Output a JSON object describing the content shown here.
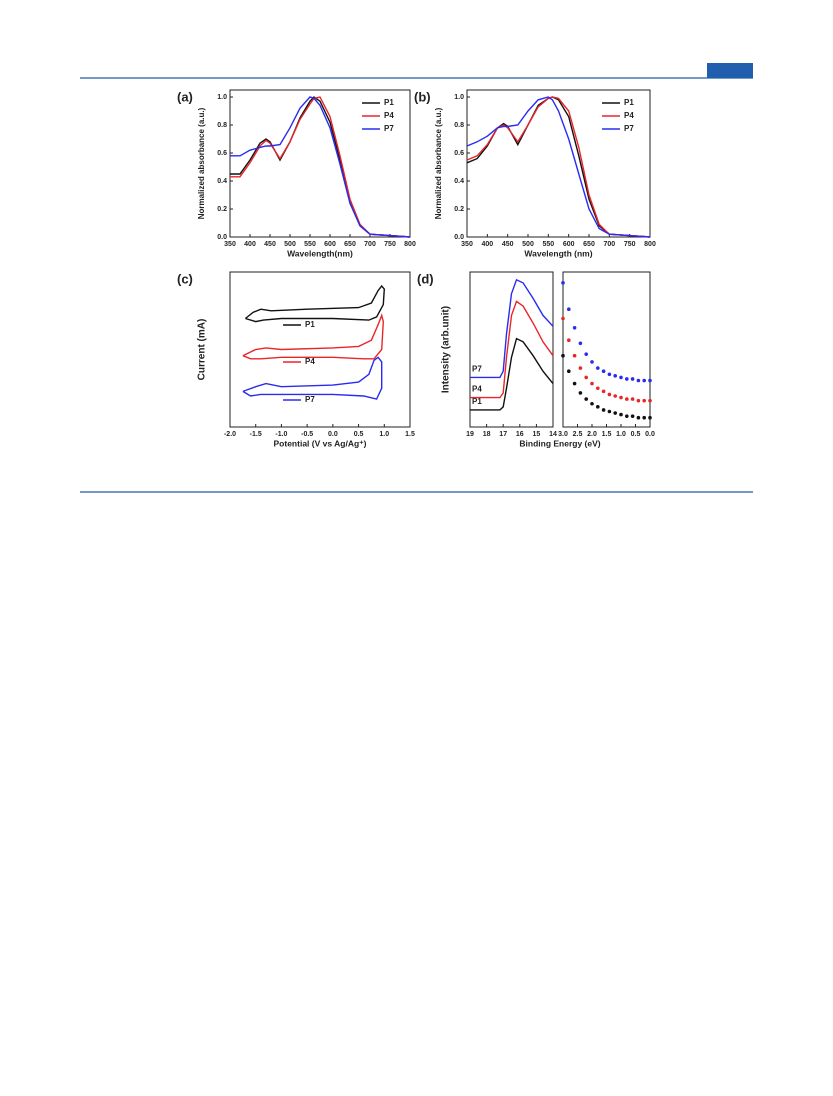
{
  "chart_data": [
    {
      "type": "line",
      "panel": "(a)",
      "xlabel": "Wavelength(nm)",
      "ylabel": "Normalized absorbance (a.u.)",
      "legend": "upper right",
      "xlim": [
        350,
        800
      ],
      "xticks": [
        350,
        400,
        450,
        500,
        550,
        600,
        650,
        700,
        750,
        800
      ],
      "ylim": [
        0,
        1.05
      ],
      "yticks": [
        {
          "value": 0,
          "label": "0.0"
        },
        {
          "value": 0.2,
          "label": "0.2"
        },
        {
          "value": 0.4,
          "label": "0.4"
        },
        {
          "value": 0.6,
          "label": "0.6"
        },
        {
          "value": 0.8,
          "label": "0.8"
        },
        {
          "value": 1,
          "label": "1.0"
        }
      ],
      "x": [
        350,
        375,
        400,
        425,
        440,
        450,
        475,
        500,
        525,
        550,
        560,
        575,
        600,
        625,
        650,
        675,
        700,
        750,
        800
      ],
      "series": [
        {
          "name": "P1",
          "color": "#111111",
          "values": [
            0.45,
            0.45,
            0.55,
            0.67,
            0.7,
            0.68,
            0.55,
            0.68,
            0.85,
            0.97,
            1.0,
            0.97,
            0.82,
            0.55,
            0.25,
            0.08,
            0.02,
            0.01,
            0
          ]
        },
        {
          "name": "P4",
          "color": "#e8262a",
          "values": [
            0.43,
            0.43,
            0.53,
            0.65,
            0.69,
            0.67,
            0.56,
            0.68,
            0.84,
            0.95,
            0.99,
            1.0,
            0.86,
            0.58,
            0.27,
            0.09,
            0.02,
            0.01,
            0
          ]
        },
        {
          "name": "P7",
          "color": "#2b2bf0",
          "values": [
            0.58,
            0.58,
            0.62,
            0.64,
            0.65,
            0.65,
            0.66,
            0.78,
            0.92,
            1.0,
            0.99,
            0.94,
            0.78,
            0.52,
            0.24,
            0.08,
            0.02,
            0.01,
            0
          ]
        }
      ]
    },
    {
      "type": "line",
      "panel": "(b)",
      "xlabel": "Wavelength (nm)",
      "ylabel": "Normalized absorbance (a.u.)",
      "legend": "upper right",
      "xlim": [
        350,
        800
      ],
      "xticks": [
        350,
        400,
        450,
        500,
        550,
        600,
        650,
        700,
        750,
        800
      ],
      "ylim": [
        0,
        1.05
      ],
      "yticks": [
        {
          "value": 0,
          "label": "0.0"
        },
        {
          "value": 0.2,
          "label": "0.2"
        },
        {
          "value": 0.4,
          "label": "0.4"
        },
        {
          "value": 0.6,
          "label": "0.6"
        },
        {
          "value": 0.8,
          "label": "0.8"
        },
        {
          "value": 1,
          "label": "1.0"
        }
      ],
      "x": [
        350,
        375,
        400,
        425,
        440,
        450,
        475,
        500,
        525,
        550,
        560,
        575,
        600,
        625,
        650,
        675,
        700,
        750,
        800
      ],
      "series": [
        {
          "name": "P1",
          "color": "#111111",
          "values": [
            0.53,
            0.56,
            0.65,
            0.78,
            0.81,
            0.79,
            0.66,
            0.8,
            0.94,
            0.99,
            1.0,
            0.98,
            0.86,
            0.58,
            0.27,
            0.08,
            0.02,
            0.01,
            0
          ]
        },
        {
          "name": "P4",
          "color": "#e8262a",
          "values": [
            0.55,
            0.58,
            0.66,
            0.78,
            0.8,
            0.78,
            0.68,
            0.8,
            0.93,
            0.99,
            1.0,
            0.99,
            0.9,
            0.64,
            0.3,
            0.09,
            0.02,
            0.01,
            0
          ]
        },
        {
          "name": "P7",
          "color": "#2b2bf0",
          "values": [
            0.65,
            0.68,
            0.72,
            0.78,
            0.79,
            0.79,
            0.8,
            0.9,
            0.98,
            1.0,
            0.98,
            0.9,
            0.7,
            0.45,
            0.2,
            0.06,
            0.02,
            0.01,
            0
          ]
        }
      ]
    },
    {
      "type": "line",
      "panel": "(c)",
      "xlabel": "Potential (V vs Ag/Ag⁺)",
      "ylabel": "Current (mA)",
      "legend": "inline",
      "xlim": [
        -2,
        1.5
      ],
      "xticks": [
        {
          "value": -2,
          "label": "-2.0"
        },
        -1.5,
        {
          "value": -1,
          "label": "-1.0"
        },
        -0.5,
        {
          "value": 0,
          "label": "0.0"
        },
        0.5,
        {
          "value": 1,
          "label": "1.0"
        },
        1.5
      ],
      "ylim": [
        0,
        10
      ],
      "series": [
        {
          "name": "P1",
          "color": "#111111",
          "x": [
            -1.7,
            -1.55,
            -1.4,
            -1.2,
            -0.5,
            0.5,
            0.75,
            0.88,
            0.95,
            1.0,
            0.98,
            0.85,
            0.7,
            0.0,
            -1.0,
            -1.35,
            -1.5,
            -1.7
          ],
          "values": [
            7.0,
            7.4,
            7.6,
            7.5,
            7.6,
            7.7,
            8.0,
            8.8,
            9.1,
            8.9,
            7.9,
            7.1,
            6.9,
            7.0,
            7.0,
            6.9,
            6.8,
            7.0
          ]
        },
        {
          "name": "P4",
          "color": "#e8262a",
          "x": [
            -1.75,
            -1.5,
            -1.3,
            -1.0,
            0.0,
            0.5,
            0.75,
            0.88,
            0.95,
            0.98,
            0.95,
            0.8,
            0.6,
            0.0,
            -1.0,
            -1.4,
            -1.6,
            -1.75
          ],
          "values": [
            4.6,
            5.0,
            5.1,
            5.0,
            5.1,
            5.2,
            5.6,
            6.6,
            7.2,
            6.8,
            5.0,
            4.4,
            4.4,
            4.5,
            4.5,
            4.4,
            4.4,
            4.6
          ]
        },
        {
          "name": "P7",
          "color": "#2b2bf0",
          "x": [
            -1.75,
            -1.5,
            -1.3,
            -1.0,
            0.0,
            0.5,
            0.7,
            0.8,
            0.88,
            0.95,
            0.95,
            0.85,
            0.6,
            0.0,
            -1.0,
            -1.4,
            -1.6,
            -1.75
          ],
          "values": [
            2.3,
            2.6,
            2.8,
            2.6,
            2.7,
            2.9,
            3.4,
            4.3,
            4.5,
            4.2,
            2.5,
            1.8,
            2.0,
            2.1,
            2.1,
            2.1,
            2.0,
            2.3
          ]
        }
      ]
    },
    {
      "type": "line",
      "panel": "(d)",
      "xlabel": "Binding Energy (eV)",
      "ylabel": "Intensity (arb.unit)",
      "legend": "left",
      "xlim": [
        19,
        14
      ],
      "xticks": [
        19,
        18,
        17,
        16,
        15,
        14
      ],
      "ylim": [
        0,
        10
      ],
      "x": [
        19,
        18,
        17.2,
        17,
        16.8,
        16.5,
        16.2,
        15.8,
        15.2,
        14.6,
        14
      ],
      "series": [
        {
          "name": "P1",
          "color": "#111111",
          "values": [
            1.1,
            1.1,
            1.1,
            1.3,
            2.5,
            4.5,
            5.7,
            5.5,
            4.6,
            3.6,
            2.8
          ]
        },
        {
          "name": "P4",
          "color": "#e8262a",
          "values": [
            1.9,
            1.9,
            1.9,
            2.2,
            4.5,
            7.2,
            8.1,
            7.8,
            6.7,
            5.5,
            4.6
          ]
        },
        {
          "name": "P7",
          "color": "#2b2bf0",
          "values": [
            3.2,
            3.2,
            3.2,
            3.6,
            6.0,
            8.6,
            9.5,
            9.3,
            8.3,
            7.2,
            6.5
          ]
        }
      ]
    },
    {
      "type": "scatter",
      "xlim": [
        3,
        0
      ],
      "xticks": [
        {
          "value": 3,
          "label": "3.0"
        },
        2.5,
        {
          "value": 2,
          "label": "2.0"
        },
        1.5,
        {
          "value": 1,
          "label": "1.0"
        },
        0.5,
        {
          "value": 0,
          "label": "0.0"
        }
      ],
      "ylim": [
        0,
        10
      ],
      "x": [
        3.0,
        2.8,
        2.6,
        2.4,
        2.2,
        2.0,
        1.8,
        1.6,
        1.4,
        1.2,
        1.0,
        0.8,
        0.6,
        0.4,
        0.2,
        0.0
      ],
      "series": [
        {
          "color": "#111111",
          "values": [
            4.6,
            3.6,
            2.8,
            2.2,
            1.8,
            1.5,
            1.3,
            1.1,
            1.0,
            0.9,
            0.8,
            0.7,
            0.7,
            0.6,
            0.6,
            0.6
          ]
        },
        {
          "color": "#e8262a",
          "values": [
            7.0,
            5.6,
            4.6,
            3.8,
            3.2,
            2.8,
            2.5,
            2.3,
            2.1,
            2.0,
            1.9,
            1.8,
            1.8,
            1.7,
            1.7,
            1.7
          ]
        },
        {
          "color": "#2b2bf0",
          "values": [
            9.3,
            7.6,
            6.4,
            5.4,
            4.7,
            4.2,
            3.8,
            3.6,
            3.4,
            3.3,
            3.2,
            3.1,
            3.1,
            3.0,
            3.0,
            3.0
          ]
        }
      ]
    }
  ]
}
